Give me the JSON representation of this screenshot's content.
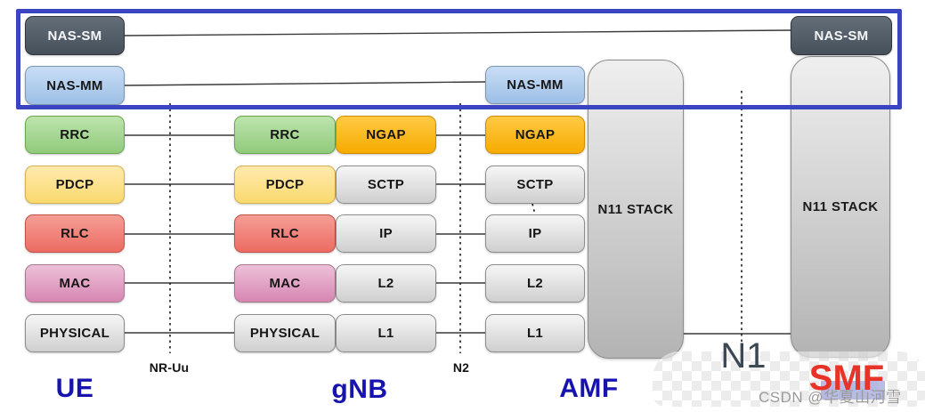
{
  "nodes": {
    "ue": "UE",
    "gnb": "gNB",
    "amf": "AMF",
    "smf": "SMF"
  },
  "interfaces": {
    "nr_uu": "NR-Uu",
    "n2": "N2",
    "n1": "N1"
  },
  "boxes": [
    {
      "id": "ue_nas_sm",
      "label": "NAS-SM",
      "color": "dark"
    },
    {
      "id": "ue_nas_mm",
      "label": "NAS-MM",
      "color": "blue"
    },
    {
      "id": "ue_rrc",
      "label": "RRC",
      "color": "green"
    },
    {
      "id": "ue_pdcp",
      "label": "PDCP",
      "color": "yellow"
    },
    {
      "id": "ue_rlc",
      "label": "RLC",
      "color": "red"
    },
    {
      "id": "ue_mac",
      "label": "MAC",
      "color": "pink"
    },
    {
      "id": "ue_physical",
      "label": "PHYSICAL",
      "color": "gray"
    },
    {
      "id": "gnb_rrc",
      "label": "RRC",
      "color": "green"
    },
    {
      "id": "gnb_pdcp",
      "label": "PDCP",
      "color": "yellow"
    },
    {
      "id": "gnb_rlc",
      "label": "RLC",
      "color": "red"
    },
    {
      "id": "gnb_mac",
      "label": "MAC",
      "color": "pink"
    },
    {
      "id": "gnb_physical",
      "label": "PHYSICAL",
      "color": "gray"
    },
    {
      "id": "gnb_ngap",
      "label": "NGAP",
      "color": "orange"
    },
    {
      "id": "gnb_sctp",
      "label": "SCTP",
      "color": "gray"
    },
    {
      "id": "gnb_ip",
      "label": "IP",
      "color": "gray"
    },
    {
      "id": "gnb_l2",
      "label": "L2",
      "color": "gray"
    },
    {
      "id": "gnb_l1",
      "label": "L1",
      "color": "gray"
    },
    {
      "id": "amf_nas_mm",
      "label": "NAS-MM",
      "color": "blue"
    },
    {
      "id": "amf_ngap",
      "label": "NGAP",
      "color": "orange"
    },
    {
      "id": "amf_sctp",
      "label": "SCTP",
      "color": "gray"
    },
    {
      "id": "amf_ip",
      "label": "IP",
      "color": "gray"
    },
    {
      "id": "amf_l2",
      "label": "L2",
      "color": "gray"
    },
    {
      "id": "amf_l1",
      "label": "L1",
      "color": "gray"
    },
    {
      "id": "smf_nas_sm",
      "label": "NAS-SM",
      "color": "dark"
    }
  ],
  "stacks": {
    "amf": {
      "label": "N11 STACK"
    },
    "smf": {
      "label": "N11 STACK"
    }
  },
  "watermark": "CSDN @华夏山河雪",
  "palette": {
    "frame_blue": "#3b45c1",
    "node_label_blue": "#1713ad",
    "smf_label_red": "#e73328",
    "n1_label_gray": "#3c4754",
    "nas_sm_dark": "#515a64",
    "nas_mm_blue": "#aecdf0",
    "rrc_green": "#a5d893",
    "pdcp_yellow": "#fde08c",
    "rlc_red": "#f0857c",
    "mac_pink": "#e2a4c6",
    "ngap_orange": "#fbb719",
    "gray_box": "#e2e2e2",
    "watermark_gray": "#9a9a9a"
  }
}
